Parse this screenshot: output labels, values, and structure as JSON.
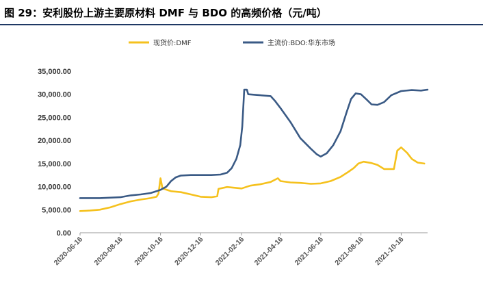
{
  "header": {
    "title": "图 29：安利股份上游主要原材料 DMF 与 BDO 的高频价格（元/吨）"
  },
  "colors": {
    "dmf": "#F5C11D",
    "bdo": "#3A5A85",
    "rule": "#1F3864"
  },
  "chart_data": {
    "type": "line",
    "title": "",
    "xlabel": "",
    "ylabel": "",
    "ylim": [
      0,
      35000
    ],
    "xlim": [
      "2020-06-16",
      "2021-11-25"
    ],
    "legend_position": "top",
    "y_ticks": [
      "0.00",
      "5,000.00",
      "10,000.00",
      "15,000.00",
      "20,000.00",
      "25,000.00",
      "30,000.00",
      "35,000.00"
    ],
    "x_ticks": [
      "2020-06-16",
      "2020-08-16",
      "2020-10-16",
      "2020-12-16",
      "2021-02-16",
      "2021-04-16",
      "2021-06-16",
      "2021-08-16",
      "2021-10-16"
    ],
    "series": [
      {
        "name": "现货价:DMF",
        "color": "#F5C11D",
        "points": [
          [
            "2020-06-16",
            4700
          ],
          [
            "2020-07-01",
            4800
          ],
          [
            "2020-07-16",
            5000
          ],
          [
            "2020-08-01",
            5500
          ],
          [
            "2020-08-16",
            6200
          ],
          [
            "2020-09-01",
            6800
          ],
          [
            "2020-09-16",
            7200
          ],
          [
            "2020-10-01",
            7500
          ],
          [
            "2020-10-10",
            7800
          ],
          [
            "2020-10-13",
            8500
          ],
          [
            "2020-10-16",
            11800
          ],
          [
            "2020-10-19",
            9600
          ],
          [
            "2020-11-01",
            9000
          ],
          [
            "2020-11-16",
            8800
          ],
          [
            "2020-12-01",
            8300
          ],
          [
            "2020-12-16",
            7800
          ],
          [
            "2021-01-01",
            7700
          ],
          [
            "2021-01-10",
            7900
          ],
          [
            "2021-01-12",
            9500
          ],
          [
            "2021-01-25",
            9900
          ],
          [
            "2021-02-16",
            9600
          ],
          [
            "2021-03-01",
            10200
          ],
          [
            "2021-03-16",
            10500
          ],
          [
            "2021-04-01",
            11000
          ],
          [
            "2021-04-12",
            11800
          ],
          [
            "2021-04-16",
            11200
          ],
          [
            "2021-05-01",
            10900
          ],
          [
            "2021-05-16",
            10800
          ],
          [
            "2021-06-01",
            10600
          ],
          [
            "2021-06-16",
            10700
          ],
          [
            "2021-07-01",
            11200
          ],
          [
            "2021-07-16",
            12100
          ],
          [
            "2021-07-28",
            13200
          ],
          [
            "2021-08-05",
            14000
          ],
          [
            "2021-08-12",
            15000
          ],
          [
            "2021-08-20",
            15400
          ],
          [
            "2021-09-01",
            15100
          ],
          [
            "2021-09-10",
            14700
          ],
          [
            "2021-09-20",
            13800
          ],
          [
            "2021-10-05",
            13800
          ],
          [
            "2021-10-10",
            17800
          ],
          [
            "2021-10-16",
            18500
          ],
          [
            "2021-10-25",
            17300
          ],
          [
            "2021-11-01",
            16000
          ],
          [
            "2021-11-10",
            15200
          ],
          [
            "2021-11-20",
            15000
          ]
        ]
      },
      {
        "name": "主流价:BDO:华东市场",
        "color": "#3A5A85",
        "points": [
          [
            "2020-06-16",
            7500
          ],
          [
            "2020-07-16",
            7500
          ],
          [
            "2020-08-16",
            7700
          ],
          [
            "2020-09-01",
            8100
          ],
          [
            "2020-09-16",
            8300
          ],
          [
            "2020-10-01",
            8600
          ],
          [
            "2020-10-10",
            9000
          ],
          [
            "2020-10-16",
            9300
          ],
          [
            "2020-10-25",
            10000
          ],
          [
            "2020-11-01",
            11200
          ],
          [
            "2020-11-08",
            12000
          ],
          [
            "2020-11-16",
            12400
          ],
          [
            "2020-12-01",
            12500
          ],
          [
            "2020-12-16",
            12500
          ],
          [
            "2021-01-01",
            12500
          ],
          [
            "2021-01-15",
            12600
          ],
          [
            "2021-01-25",
            13000
          ],
          [
            "2021-02-01",
            14000
          ],
          [
            "2021-02-08",
            16000
          ],
          [
            "2021-02-14",
            19000
          ],
          [
            "2021-02-17",
            23000
          ],
          [
            "2021-02-20",
            31000
          ],
          [
            "2021-02-24",
            31000
          ],
          [
            "2021-02-26",
            30000
          ],
          [
            "2021-03-16",
            29800
          ],
          [
            "2021-04-01",
            29600
          ],
          [
            "2021-04-08",
            28500
          ],
          [
            "2021-04-16",
            27000
          ],
          [
            "2021-05-01",
            24000
          ],
          [
            "2021-05-16",
            20500
          ],
          [
            "2021-06-01",
            18200
          ],
          [
            "2021-06-10",
            17000
          ],
          [
            "2021-06-16",
            16500
          ],
          [
            "2021-06-25",
            17200
          ],
          [
            "2021-07-05",
            19000
          ],
          [
            "2021-07-16",
            22000
          ],
          [
            "2021-07-25",
            26000
          ],
          [
            "2021-08-01",
            29000
          ],
          [
            "2021-08-08",
            30200
          ],
          [
            "2021-08-16",
            30000
          ],
          [
            "2021-08-25",
            28800
          ],
          [
            "2021-09-01",
            27800
          ],
          [
            "2021-09-10",
            27700
          ],
          [
            "2021-09-20",
            28300
          ],
          [
            "2021-10-01",
            29800
          ],
          [
            "2021-10-16",
            30700
          ],
          [
            "2021-11-01",
            30900
          ],
          [
            "2021-11-15",
            30800
          ],
          [
            "2021-11-25",
            31000
          ]
        ]
      }
    ]
  }
}
